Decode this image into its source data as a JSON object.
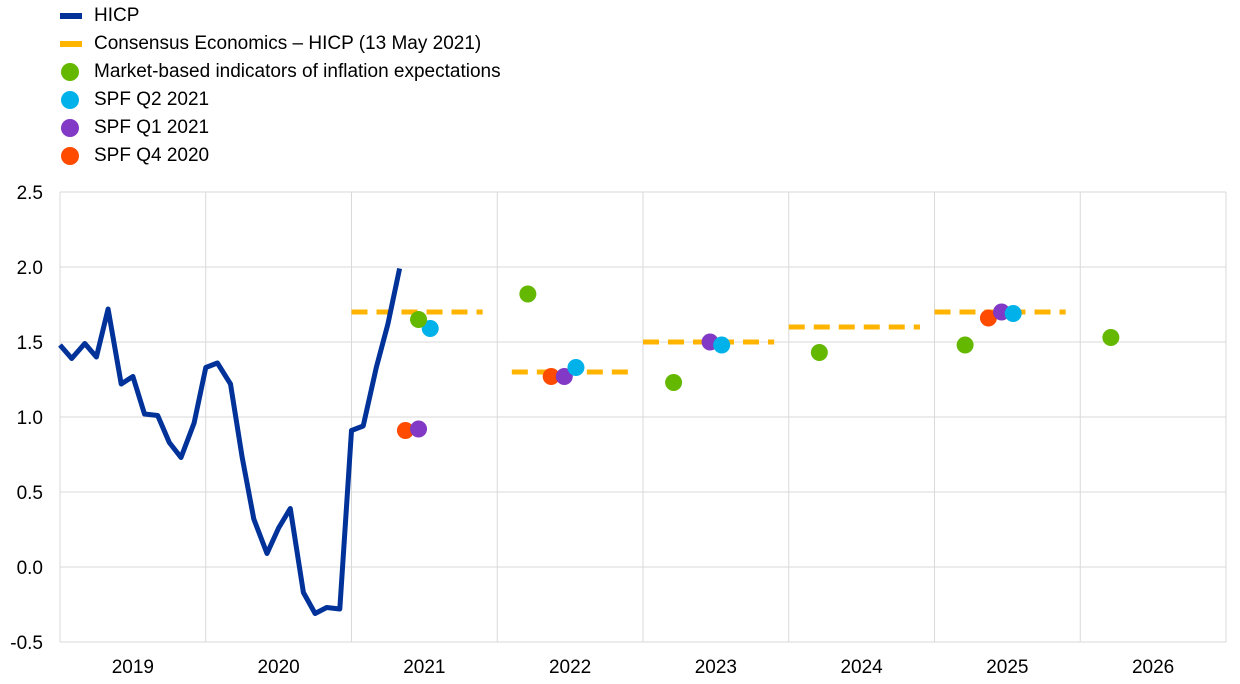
{
  "chart_data": {
    "type": "line",
    "title": "",
    "xlabel": "",
    "ylabel": "",
    "ylim": [
      -0.5,
      2.5
    ],
    "yticks": [
      "2.5",
      "2.0",
      "1.5",
      "1.0",
      "0.5",
      "0.0",
      "-0.5"
    ],
    "ytick_values": [
      2.5,
      2.0,
      1.5,
      1.0,
      0.5,
      0.0,
      -0.5
    ],
    "xlim": [
      2019.0,
      2027.0
    ],
    "x_categories": [
      "2019",
      "2020",
      "2021",
      "2022",
      "2023",
      "2024",
      "2025",
      "2026"
    ],
    "grid": true,
    "legend_position": "top-left",
    "series": [
      {
        "name": "HICP",
        "kind": "line",
        "color": "#003299",
        "x": [
          2019.0,
          2019.08,
          2019.17,
          2019.25,
          2019.33,
          2019.42,
          2019.5,
          2019.58,
          2019.67,
          2019.75,
          2019.83,
          2019.92,
          2020.0,
          2020.08,
          2020.17,
          2020.25,
          2020.33,
          2020.42,
          2020.5,
          2020.58,
          2020.67,
          2020.75,
          2020.83,
          2020.92,
          2021.0,
          2021.08,
          2021.17,
          2021.25,
          2021.33
        ],
        "y": [
          1.48,
          1.39,
          1.49,
          1.4,
          1.72,
          1.22,
          1.27,
          1.02,
          1.01,
          0.83,
          0.73,
          0.96,
          1.33,
          1.36,
          1.22,
          0.73,
          0.32,
          0.09,
          0.26,
          0.39,
          -0.17,
          -0.31,
          -0.27,
          -0.28,
          0.91,
          0.94,
          1.33,
          1.62,
          1.99
        ]
      },
      {
        "name": "Consensus Economics – HICP (13 May 2021)",
        "kind": "segments",
        "color": "#ffb400",
        "segments": [
          {
            "x0": 2021.0,
            "x1": 2021.9,
            "y": 1.7
          },
          {
            "x0": 2022.1,
            "x1": 2022.9,
            "y": 1.3
          },
          {
            "x0": 2023.0,
            "x1": 2023.9,
            "y": 1.5
          },
          {
            "x0": 2024.0,
            "x1": 2024.9,
            "y": 1.6
          },
          {
            "x0": 2025.0,
            "x1": 2025.9,
            "y": 1.7
          }
        ]
      },
      {
        "name": "Market-based indicators of inflation expectations",
        "kind": "scatter",
        "color": "#65b800",
        "x": [
          2021.46,
          2022.21,
          2023.21,
          2024.21,
          2025.21,
          2026.21
        ],
        "y": [
          1.65,
          1.82,
          1.23,
          1.43,
          1.48,
          1.53
        ]
      },
      {
        "name": "SPF Q2 2021",
        "kind": "scatter",
        "color": "#00b1ea",
        "x": [
          2021.54,
          2022.54,
          2023.54,
          2025.54
        ],
        "y": [
          1.59,
          1.33,
          1.48,
          1.69
        ]
      },
      {
        "name": "SPF Q1 2021",
        "kind": "scatter",
        "color": "#8139c6",
        "x": [
          2021.46,
          2022.46,
          2023.46,
          2025.46
        ],
        "y": [
          0.92,
          1.27,
          1.5,
          1.7
        ]
      },
      {
        "name": "SPF Q4 2020",
        "kind": "scatter",
        "color": "#ff4b00",
        "x": [
          2021.37,
          2022.37,
          2025.37
        ],
        "y": [
          0.91,
          1.27,
          1.66
        ]
      }
    ]
  }
}
